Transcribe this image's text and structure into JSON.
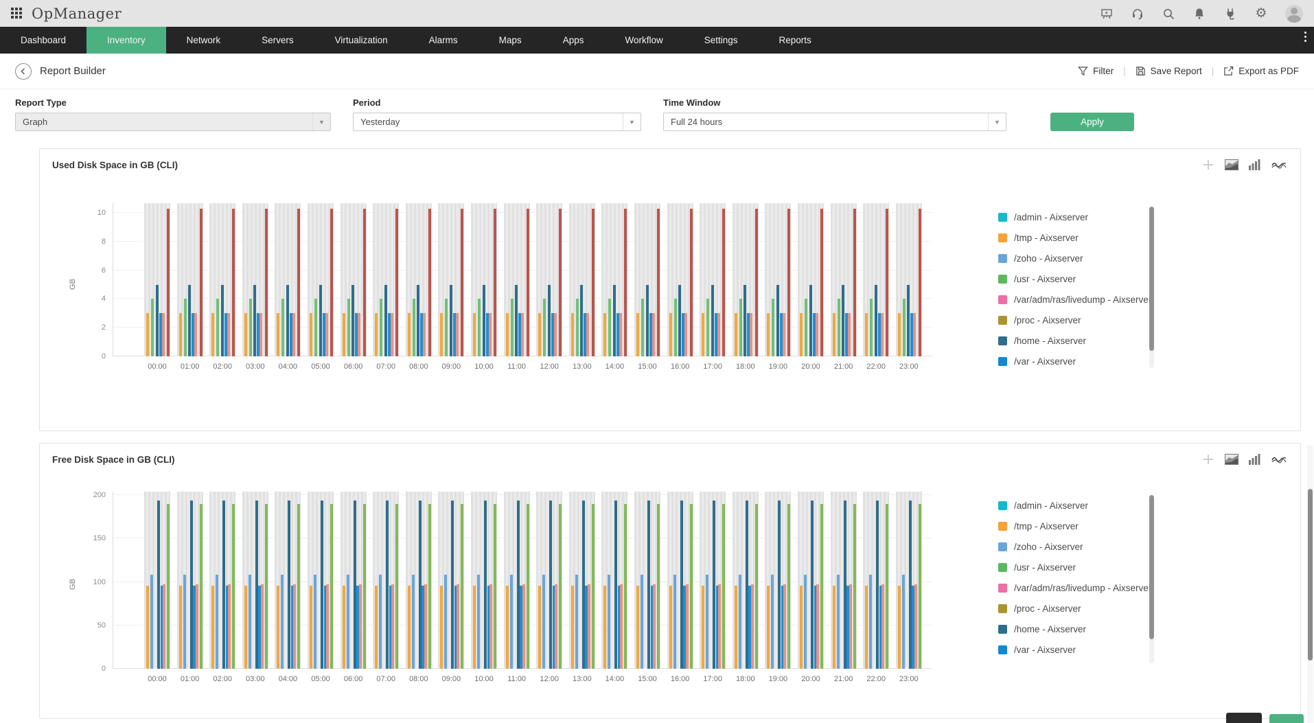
{
  "topbar": {
    "logo": "OpManager",
    "icons": [
      "apps-grid",
      "presentation",
      "headset",
      "search",
      "bell",
      "plug",
      "gear",
      "avatar"
    ]
  },
  "nav": {
    "items": [
      {
        "label": "Dashboard",
        "active": false
      },
      {
        "label": "Inventory",
        "active": true
      },
      {
        "label": "Network",
        "active": false
      },
      {
        "label": "Servers",
        "active": false
      },
      {
        "label": "Virtualization",
        "active": false
      },
      {
        "label": "Alarms",
        "active": false
      },
      {
        "label": "Maps",
        "active": false
      },
      {
        "label": "Apps",
        "active": false
      },
      {
        "label": "Workflow",
        "active": false
      },
      {
        "label": "Settings",
        "active": false
      },
      {
        "label": "Reports",
        "active": false
      }
    ]
  },
  "page_header": {
    "title": "Report Builder",
    "actions": [
      {
        "label": "Filter",
        "icon": "funnel-icon"
      },
      {
        "label": "Save Report",
        "icon": "save-icon"
      },
      {
        "label": "Export as PDF",
        "icon": "export-icon"
      }
    ]
  },
  "filters": {
    "report_type": {
      "label": "Report Type",
      "value": "Graph",
      "disabled": true
    },
    "period": {
      "label": "Period",
      "value": "Yesterday"
    },
    "time_window": {
      "label": "Time Window",
      "value": "Full 24 hours"
    },
    "apply_label": "Apply"
  },
  "panel_icons": [
    "add",
    "area-chart",
    "bar-chart",
    "line-chart"
  ],
  "accent_color": "#4cb181",
  "chart_data": [
    {
      "type": "bar",
      "title": "Used Disk Space in GB (CLI)",
      "ylabel": "GB",
      "yticks": [
        0,
        2,
        4,
        6,
        8,
        10
      ],
      "ymax_plot": 10.67,
      "grid": true,
      "legend_position": "right",
      "categories": [
        "00:00",
        "01:00",
        "02:00",
        "03:00",
        "04:00",
        "05:00",
        "06:00",
        "07:00",
        "08:00",
        "09:00",
        "10:00",
        "11:00",
        "12:00",
        "13:00",
        "14:00",
        "15:00",
        "16:00",
        "17:00",
        "18:00",
        "19:00",
        "20:00",
        "21:00",
        "22:00",
        "23:00"
      ],
      "values_constant_for_all_categories": true,
      "background_bar_value": 10.67,
      "background_bar_color": "#e6e6e6",
      "bars": [
        {
          "color": "#f2a83d",
          "value": 3,
          "offset": 3
        },
        {
          "color": "#72c077",
          "value": 4,
          "offset": 10
        },
        {
          "color": "#2f6d8c",
          "value": 5,
          "offset": 16.5
        },
        {
          "color": "#1e90d6",
          "value": 3,
          "offset": 21.5
        },
        {
          "color": "#e99184",
          "value": 3,
          "offset": 25.5
        },
        {
          "color": "#bc544b",
          "value": 10.3,
          "offset": 33
        }
      ],
      "legend": [
        {
          "label": "/admin - Aixserver",
          "color": "#17b8ce"
        },
        {
          "label": "/tmp - Aixserver",
          "color": "#f5a238"
        },
        {
          "label": "/zoho - Aixserver",
          "color": "#6aa5d8"
        },
        {
          "label": "/usr - Aixserver",
          "color": "#5cb860"
        },
        {
          "label": "/var/adm/ras/livedump - Aixserver",
          "color": "#ef6ea6"
        },
        {
          "label": "/proc - Aixserver",
          "color": "#a89430"
        },
        {
          "label": "/home - Aixserver",
          "color": "#2f6d8c"
        },
        {
          "label": "/var - Aixserver",
          "color": "#1487d2"
        }
      ]
    },
    {
      "type": "bar",
      "title": "Free Disk Space in GB (CLI)",
      "ylabel": "GB",
      "yticks": [
        0,
        50,
        100,
        150,
        200
      ],
      "ymax_plot": 204,
      "grid": true,
      "legend_position": "right",
      "categories": [
        "00:00",
        "01:00",
        "02:00",
        "03:00",
        "04:00",
        "05:00",
        "06:00",
        "07:00",
        "08:00",
        "09:00",
        "10:00",
        "11:00",
        "12:00",
        "13:00",
        "14:00",
        "15:00",
        "16:00",
        "17:00",
        "18:00",
        "19:00",
        "20:00",
        "21:00",
        "22:00",
        "23:00"
      ],
      "values_constant_for_all_categories": true,
      "background_bar_value": 204,
      "background_bar_color": "#e6e6e6",
      "bars": [
        {
          "color": "#f2a83d",
          "value": 96,
          "offset": 3
        },
        {
          "color": "#6aa5d8",
          "value": 108,
          "offset": 9
        },
        {
          "color": "#2f6d8c",
          "value": 194,
          "offset": 19
        },
        {
          "color": "#1e90d6",
          "value": 96,
          "offset": 23.5
        },
        {
          "color": "#e99184",
          "value": 97,
          "offset": 27
        },
        {
          "color": "#82ba57",
          "value": 190,
          "offset": 33
        }
      ],
      "legend": [
        {
          "label": "/admin - Aixserver",
          "color": "#17b8ce"
        },
        {
          "label": "/tmp - Aixserver",
          "color": "#f5a238"
        },
        {
          "label": "/zoho - Aixserver",
          "color": "#6aa5d8"
        },
        {
          "label": "/usr - Aixserver",
          "color": "#5cb860"
        },
        {
          "label": "/var/adm/ras/livedump - Aixserver",
          "color": "#ef6ea6"
        },
        {
          "label": "/proc - Aixserver",
          "color": "#a89430"
        },
        {
          "label": "/home - Aixserver",
          "color": "#2f6d8c"
        },
        {
          "label": "/var - Aixserver",
          "color": "#1487d2"
        }
      ]
    }
  ]
}
